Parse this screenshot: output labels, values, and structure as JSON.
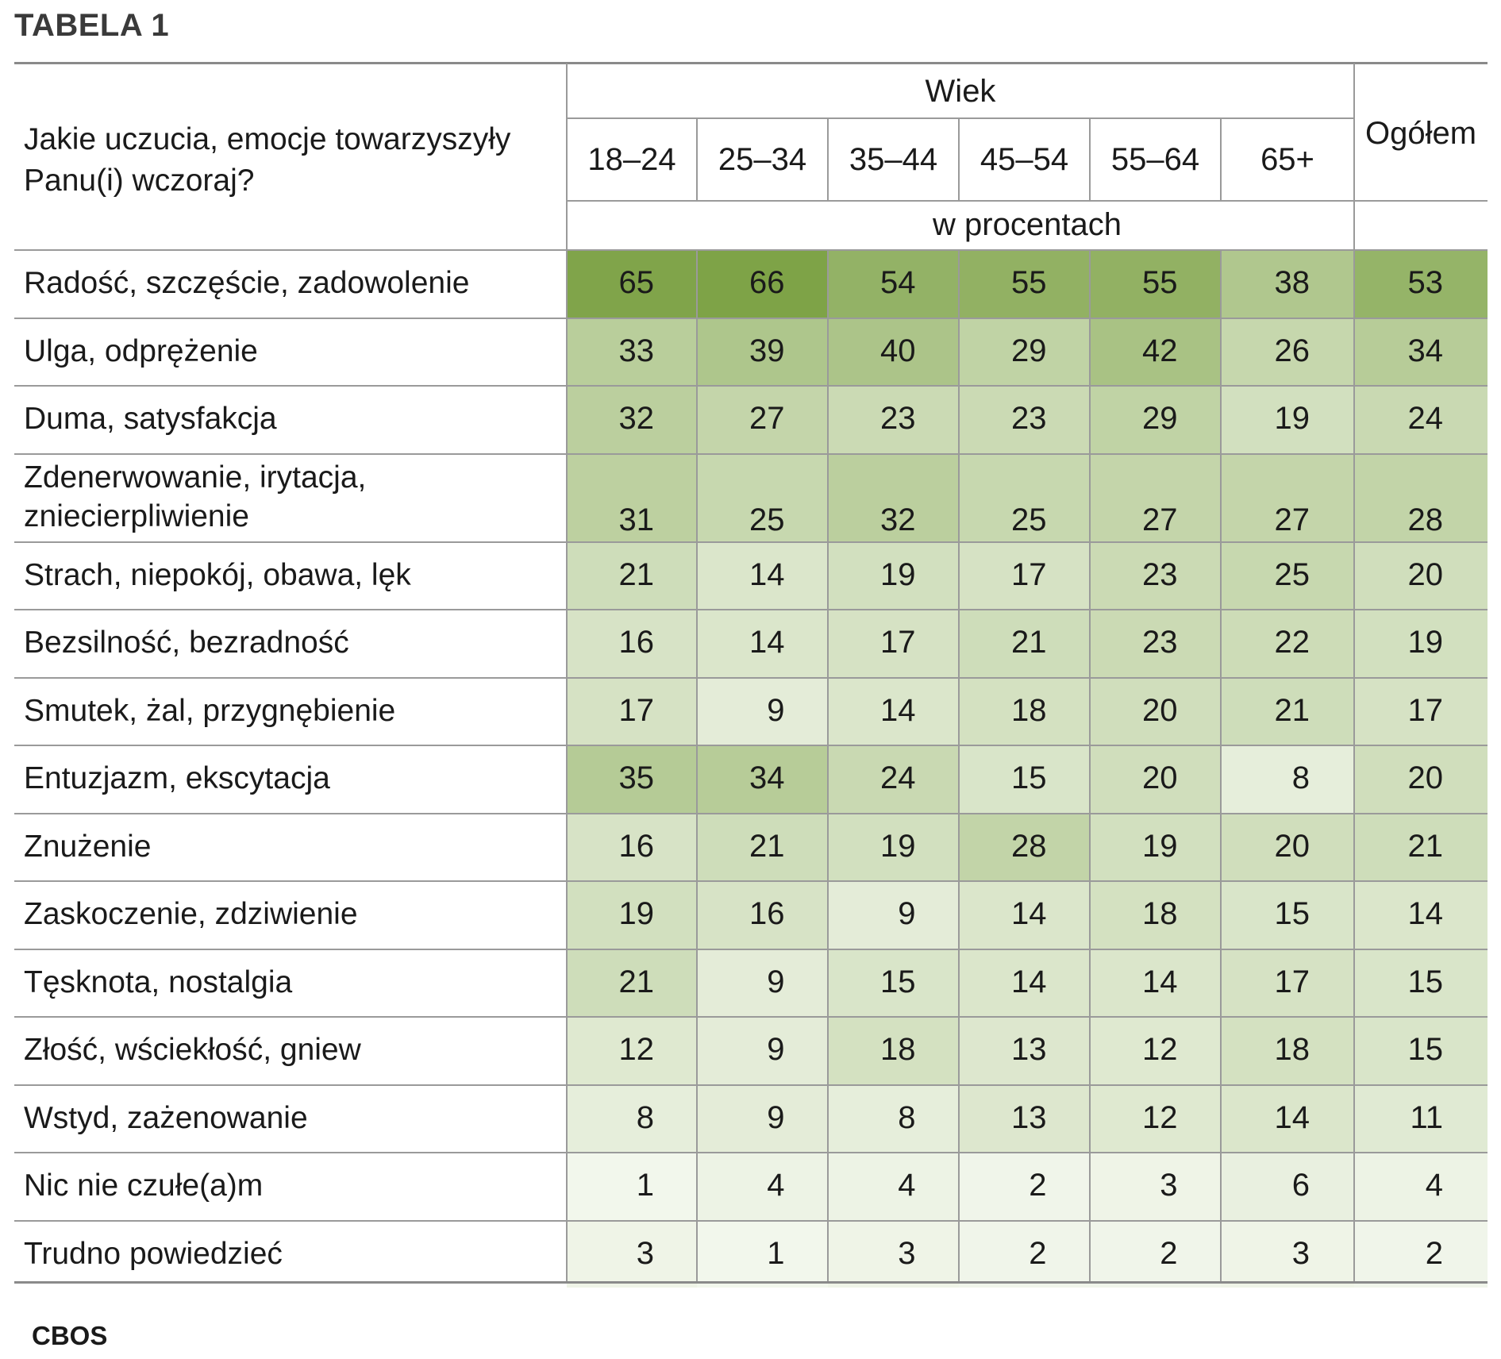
{
  "title": "TABELA 1",
  "source": "CBOS",
  "question": "Jakie uczucia, emocje towarzyszyły Panu(i) wczoraj?",
  "header": {
    "group": "Wiek",
    "total": "Ogółem",
    "unit": "w procentach",
    "age_groups": [
      "18–24",
      "25–34",
      "35–44",
      "45–54",
      "55–64",
      "65+"
    ]
  },
  "colors": {
    "scale_low": "#f4f8ef",
    "scale_high": "#7ea347",
    "rule": "#8a8a8a"
  },
  "chart_data": {
    "type": "table",
    "title": "TABELA 1",
    "columns": [
      "18–24",
      "25–34",
      "35–44",
      "45–54",
      "55–64",
      "65+",
      "Ogółem"
    ],
    "rows": [
      {
        "label": "Radość, szczęście, zadowolenie",
        "values": [
          65,
          66,
          54,
          55,
          55,
          38,
          53
        ]
      },
      {
        "label": "Ulga, odprężenie",
        "values": [
          33,
          39,
          40,
          29,
          42,
          26,
          34
        ]
      },
      {
        "label": "Duma, satysfakcja",
        "values": [
          32,
          27,
          23,
          23,
          29,
          19,
          24
        ]
      },
      {
        "label": "Zdenerwowanie, irytacja, zniecierpliwienie",
        "values": [
          31,
          25,
          32,
          25,
          27,
          27,
          28
        ]
      },
      {
        "label": "Strach, niepokój, obawa, lęk",
        "values": [
          21,
          14,
          19,
          17,
          23,
          25,
          20
        ]
      },
      {
        "label": "Bezsilność, bezradność",
        "values": [
          16,
          14,
          17,
          21,
          23,
          22,
          19
        ]
      },
      {
        "label": "Smutek, żal, przygnębienie",
        "values": [
          17,
          9,
          14,
          18,
          20,
          21,
          17
        ]
      },
      {
        "label": "Entuzjazm, ekscytacja",
        "values": [
          35,
          34,
          24,
          15,
          20,
          8,
          20
        ]
      },
      {
        "label": "Znużenie",
        "values": [
          16,
          21,
          19,
          28,
          19,
          20,
          21
        ]
      },
      {
        "label": "Zaskoczenie, zdziwienie",
        "values": [
          19,
          16,
          9,
          14,
          18,
          15,
          14
        ]
      },
      {
        "label": "Tęsknota, nostalgia",
        "values": [
          21,
          9,
          15,
          14,
          14,
          17,
          15
        ]
      },
      {
        "label": "Złość, wściekłość, gniew",
        "values": [
          12,
          9,
          18,
          13,
          12,
          18,
          15
        ]
      },
      {
        "label": "Wstyd, zażenowanie",
        "values": [
          8,
          9,
          8,
          13,
          12,
          14,
          11
        ]
      },
      {
        "label": "Nic nie czułe(a)m",
        "values": [
          1,
          4,
          4,
          2,
          3,
          6,
          4
        ]
      },
      {
        "label": "Trudno powiedzieć",
        "values": [
          3,
          1,
          3,
          2,
          2,
          3,
          2
        ]
      }
    ]
  }
}
